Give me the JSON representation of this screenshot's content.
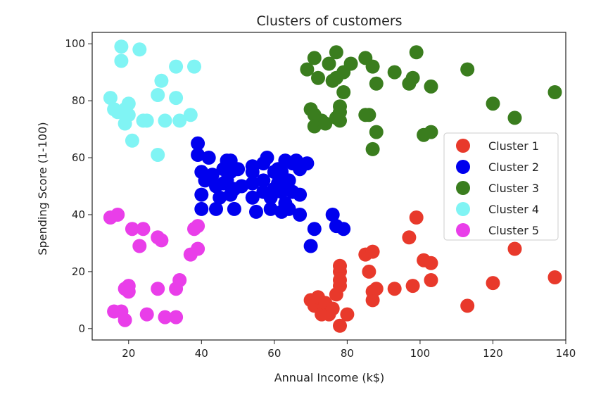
{
  "chart_data": {
    "type": "scatter",
    "title": "Clusters of customers",
    "xlabel": "Annual Income (k$)",
    "ylabel": "Spending Score (1-100)",
    "xlim": [
      10,
      140
    ],
    "ylim": [
      -4,
      104
    ],
    "xticks": [
      20,
      40,
      60,
      80,
      100,
      120,
      140
    ],
    "yticks": [
      0,
      20,
      40,
      60,
      80,
      100
    ],
    "grid": false,
    "legend_position": "right",
    "series": [
      {
        "name": "Cluster 1",
        "color": "#e8392b",
        "points": [
          [
            70,
            10
          ],
          [
            71,
            8
          ],
          [
            72,
            11
          ],
          [
            73,
            5
          ],
          [
            74,
            9
          ],
          [
            75,
            5
          ],
          [
            76,
            7
          ],
          [
            77,
            12
          ],
          [
            78,
            1
          ],
          [
            78,
            15
          ],
          [
            78,
            17
          ],
          [
            78,
            20
          ],
          [
            78,
            22
          ],
          [
            80,
            5
          ],
          [
            85,
            26
          ],
          [
            86,
            20
          ],
          [
            87,
            27
          ],
          [
            87,
            10
          ],
          [
            87,
            13
          ],
          [
            88,
            14
          ],
          [
            93,
            14
          ],
          [
            97,
            32
          ],
          [
            98,
            15
          ],
          [
            99,
            39
          ],
          [
            101,
            24
          ],
          [
            103,
            23
          ],
          [
            103,
            17
          ],
          [
            113,
            8
          ],
          [
            120,
            16
          ],
          [
            126,
            28
          ],
          [
            137,
            18
          ]
        ]
      },
      {
        "name": "Cluster 2",
        "color": "#0000ee",
        "points": [
          [
            39,
            65
          ],
          [
            39,
            61
          ],
          [
            40,
            55
          ],
          [
            40,
            47
          ],
          [
            40,
            42
          ],
          [
            41,
            52
          ],
          [
            42,
            60
          ],
          [
            43,
            54
          ],
          [
            44,
            50
          ],
          [
            44,
            42
          ],
          [
            45,
            46
          ],
          [
            46,
            56
          ],
          [
            46,
            51
          ],
          [
            47,
            59
          ],
          [
            47,
            52
          ],
          [
            48,
            59
          ],
          [
            48,
            47
          ],
          [
            48,
            55
          ],
          [
            49,
            42
          ],
          [
            49,
            49
          ],
          [
            50,
            56
          ],
          [
            51,
            50
          ],
          [
            54,
            46
          ],
          [
            54,
            57
          ],
          [
            54,
            51
          ],
          [
            54,
            55
          ],
          [
            55,
            41
          ],
          [
            57,
            58
          ],
          [
            57,
            48
          ],
          [
            57,
            52
          ],
          [
            58,
            60
          ],
          [
            59,
            46
          ],
          [
            59,
            42
          ],
          [
            60,
            48
          ],
          [
            60,
            49
          ],
          [
            60,
            55
          ],
          [
            61,
            56
          ],
          [
            61,
            51
          ],
          [
            62,
            41
          ],
          [
            62,
            48
          ],
          [
            62,
            55
          ],
          [
            63,
            50
          ],
          [
            63,
            59
          ],
          [
            63,
            44
          ],
          [
            64,
            42
          ],
          [
            64,
            52
          ],
          [
            65,
            58
          ],
          [
            65,
            48
          ],
          [
            66,
            59
          ],
          [
            67,
            40
          ],
          [
            67,
            56
          ],
          [
            67,
            47
          ],
          [
            69,
            58
          ],
          [
            70,
            29
          ],
          [
            71,
            35
          ],
          [
            76,
            40
          ],
          [
            77,
            36
          ],
          [
            79,
            35
          ]
        ]
      },
      {
        "name": "Cluster 3",
        "color": "#3a7d1e",
        "points": [
          [
            69,
            91
          ],
          [
            70,
            77
          ],
          [
            71,
            95
          ],
          [
            71,
            75
          ],
          [
            71,
            71
          ],
          [
            72,
            88
          ],
          [
            73,
            73
          ],
          [
            74,
            72
          ],
          [
            75,
            93
          ],
          [
            76,
            87
          ],
          [
            77,
            97
          ],
          [
            77,
            74
          ],
          [
            77,
            88
          ],
          [
            78,
            76
          ],
          [
            78,
            78
          ],
          [
            78,
            73
          ],
          [
            79,
            90
          ],
          [
            79,
            83
          ],
          [
            81,
            93
          ],
          [
            85,
            75
          ],
          [
            85,
            95
          ],
          [
            86,
            75
          ],
          [
            87,
            92
          ],
          [
            87,
            63
          ],
          [
            88,
            86
          ],
          [
            88,
            69
          ],
          [
            93,
            90
          ],
          [
            97,
            86
          ],
          [
            98,
            88
          ],
          [
            99,
            97
          ],
          [
            101,
            68
          ],
          [
            103,
            69
          ],
          [
            103,
            85
          ],
          [
            113,
            91
          ],
          [
            120,
            79
          ],
          [
            126,
            74
          ],
          [
            137,
            83
          ]
        ]
      },
      {
        "name": "Cluster 4",
        "color": "#80f4f4",
        "points": [
          [
            15,
            81
          ],
          [
            16,
            77
          ],
          [
            17,
            76
          ],
          [
            18,
            94
          ],
          [
            18,
            99
          ],
          [
            19,
            72
          ],
          [
            19,
            77
          ],
          [
            20,
            79
          ],
          [
            20,
            75
          ],
          [
            21,
            66
          ],
          [
            23,
            98
          ],
          [
            24,
            73
          ],
          [
            25,
            73
          ],
          [
            28,
            82
          ],
          [
            28,
            61
          ],
          [
            29,
            87
          ],
          [
            30,
            73
          ],
          [
            33,
            92
          ],
          [
            33,
            81
          ],
          [
            34,
            73
          ],
          [
            37,
            75
          ],
          [
            38,
            92
          ]
        ]
      },
      {
        "name": "Cluster 5",
        "color": "#e93ee9",
        "points": [
          [
            15,
            39
          ],
          [
            16,
            6
          ],
          [
            17,
            40
          ],
          [
            18,
            6
          ],
          [
            19,
            3
          ],
          [
            19,
            14
          ],
          [
            20,
            15
          ],
          [
            20,
            13
          ],
          [
            21,
            35
          ],
          [
            23,
            29
          ],
          [
            24,
            35
          ],
          [
            25,
            5
          ],
          [
            28,
            14
          ],
          [
            28,
            32
          ],
          [
            29,
            31
          ],
          [
            30,
            4
          ],
          [
            33,
            4
          ],
          [
            33,
            14
          ],
          [
            34,
            17
          ],
          [
            37,
            26
          ],
          [
            38,
            35
          ],
          [
            39,
            36
          ],
          [
            39,
            28
          ]
        ]
      }
    ]
  }
}
